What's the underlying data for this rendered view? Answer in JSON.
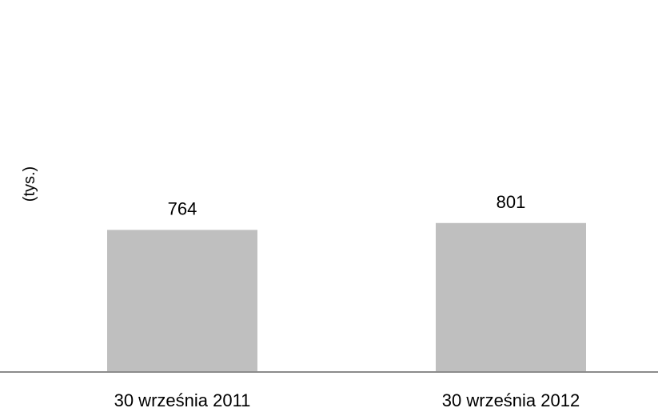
{
  "chart_data": {
    "type": "bar",
    "categories": [
      "30 września 2011",
      "30 września 2012"
    ],
    "values": [
      764,
      801
    ],
    "data_labels": [
      "764",
      "801"
    ],
    "title": "",
    "xlabel": "",
    "ylabel": "(tys.)",
    "ylim": [
      0,
      2000
    ],
    "grid": false,
    "legend": "none",
    "bar_color": "#bfbfbf",
    "axis_color": "#8c8c8c"
  }
}
